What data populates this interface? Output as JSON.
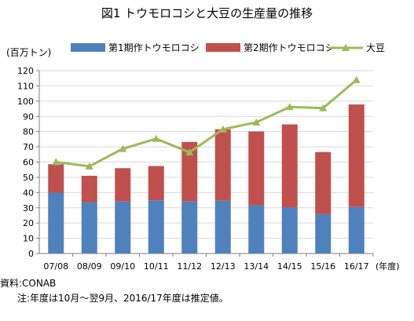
{
  "title": "図1 トウモロコシと大豆の生産量の推移",
  "unit_label": "(百万トン)",
  "x_unit_label": "(年度)",
  "source": "資料:CONAB",
  "note": "注:年度は10月〜翌9月、2016/17年度は推定値。",
  "colors": {
    "corn_1": "#4f81bd",
    "corn_2": "#c0504d",
    "soy": "#9bbb59",
    "grid": "#d9d9d9",
    "axis": "#7f7f7f"
  },
  "chart_data": {
    "type": "bar",
    "stacked": true,
    "categories": [
      "07/08",
      "08/09",
      "09/10",
      "10/11",
      "11/12",
      "12/13",
      "13/14",
      "14/15",
      "15/16",
      "16/17"
    ],
    "series": [
      {
        "name": "第1期作トウモロコシ",
        "kind": "bar",
        "color": "#4f81bd",
        "values": [
          39.9,
          33.7,
          34.1,
          34.9,
          34.1,
          34.6,
          31.7,
          30.1,
          25.8,
          30.5
        ]
      },
      {
        "name": "第2期作トウモロコシ",
        "kind": "bar",
        "color": "#c0504d",
        "values": [
          18.7,
          17.3,
          21.9,
          22.5,
          39.1,
          46.9,
          48.4,
          54.6,
          40.8,
          67.3
        ]
      },
      {
        "name": "大豆",
        "kind": "line",
        "color": "#9bbb59",
        "values": [
          60.0,
          57.2,
          68.7,
          75.3,
          66.4,
          81.5,
          86.1,
          96.2,
          95.4,
          113.9
        ]
      }
    ],
    "ylim": [
      0,
      120
    ],
    "yticks": [
      0,
      10,
      20,
      30,
      40,
      50,
      60,
      70,
      80,
      90,
      100,
      110,
      120
    ],
    "grid": true,
    "legend_position": "top"
  }
}
